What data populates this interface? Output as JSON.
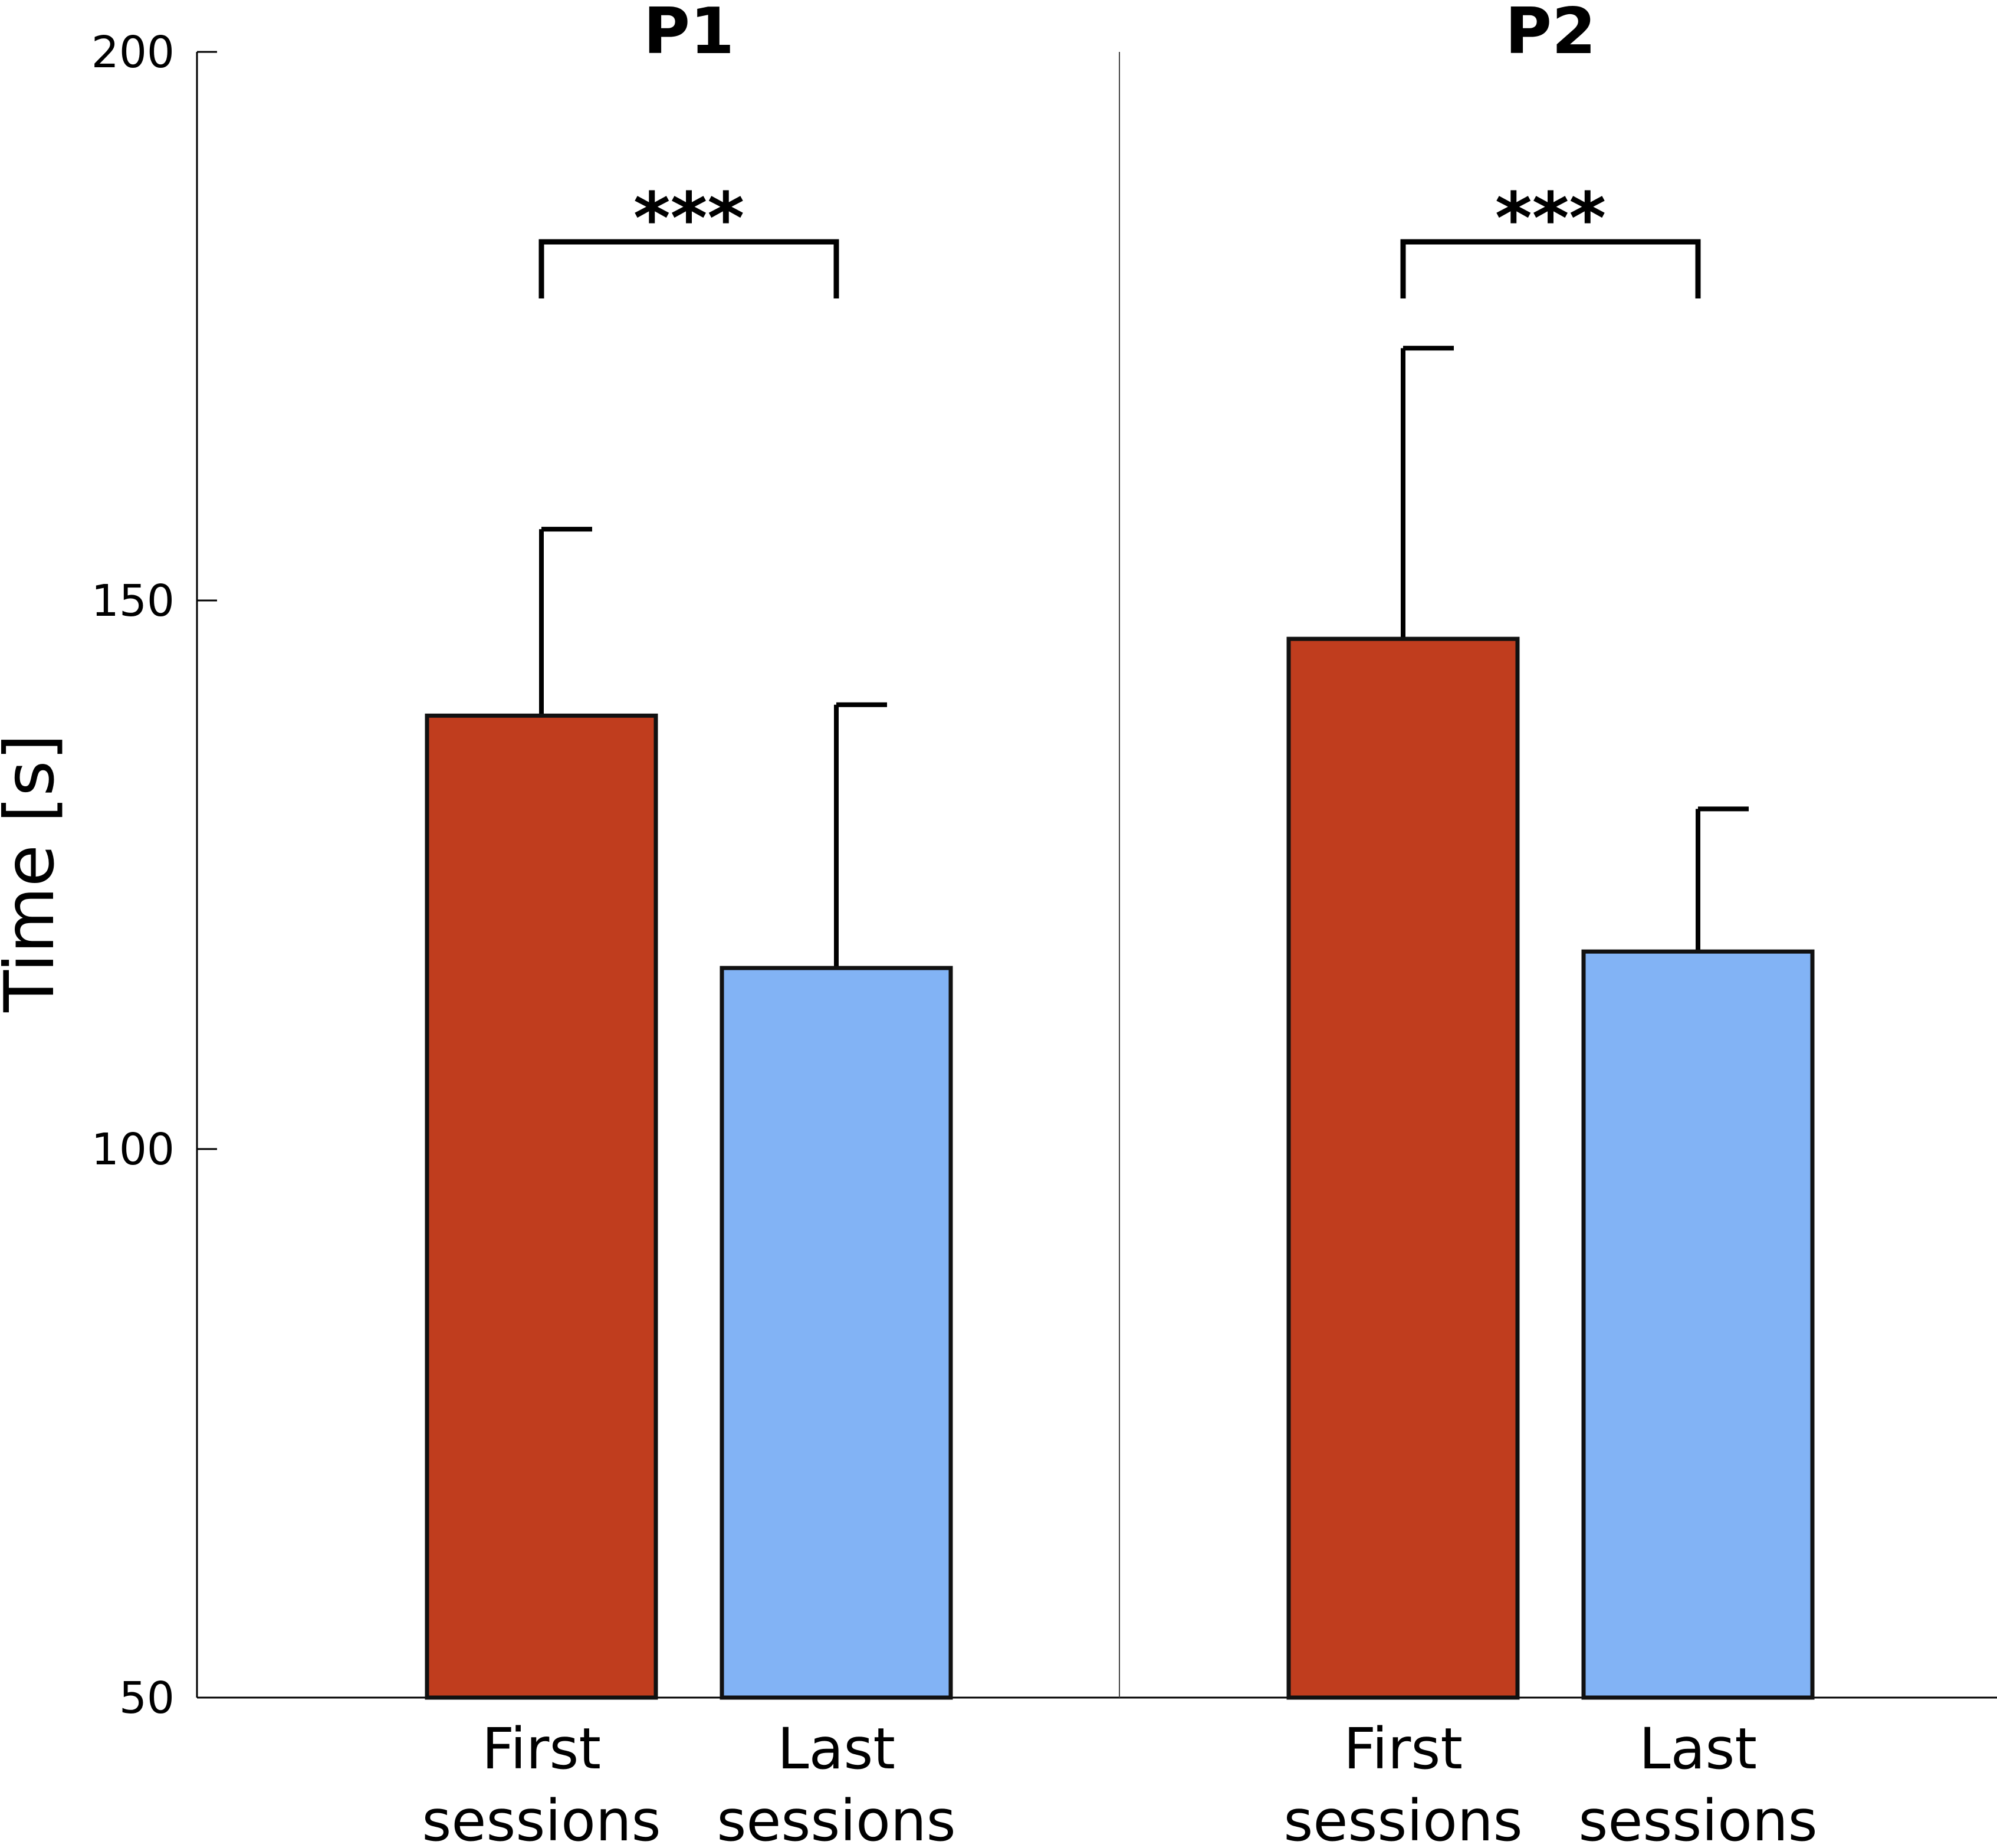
{
  "chart_data": {
    "type": "bar",
    "ylabel": "Time [s]",
    "ylim": [
      50,
      200
    ],
    "yticks": [
      50,
      100,
      150,
      200
    ],
    "grid": false,
    "panels": [
      {
        "title": "P1",
        "categories": [
          "First sessions",
          "Last sessions"
        ],
        "values": [
          139.5,
          116.5
        ],
        "error_upper": [
          156.5,
          140.5
        ],
        "colors": [
          "#c03d1e",
          "#82b3f5"
        ],
        "significance": "***"
      },
      {
        "title": "P2",
        "categories": [
          "First sessions",
          "Last sessions"
        ],
        "values": [
          146.5,
          118
        ],
        "error_upper": [
          173,
          131
        ],
        "colors": [
          "#c03d1e",
          "#82b3f5"
        ],
        "significance": "***"
      }
    ]
  }
}
